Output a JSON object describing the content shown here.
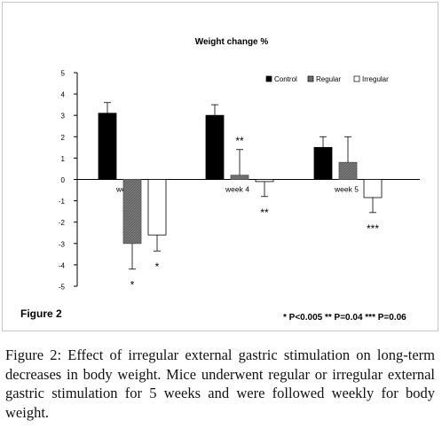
{
  "chart_data": {
    "type": "bar",
    "title": "Weight change %",
    "categories": [
      "week 1",
      "week 4",
      "week 5"
    ],
    "series": [
      {
        "name": "Control",
        "color": "#000000",
        "pattern": "solid",
        "values": [
          3.1,
          3.0,
          1.5
        ],
        "errors": [
          0.5,
          0.5,
          0.5
        ]
      },
      {
        "name": "Regular",
        "color": "#808080",
        "pattern": "hatched",
        "values": [
          -3.0,
          0.2,
          0.8
        ],
        "errors": [
          1.2,
          1.2,
          1.2
        ]
      },
      {
        "name": "Irregular",
        "color": "#ffffff",
        "pattern": "outline",
        "values": [
          -2.6,
          -0.1,
          -0.85
        ],
        "errors": [
          0.75,
          0.7,
          0.7
        ]
      }
    ],
    "ylim": [
      -5,
      5
    ],
    "yticks": [
      "5",
      "4",
      "3",
      "2",
      "1",
      "0",
      "-1",
      "-2",
      "-3",
      "-4",
      "-5"
    ],
    "legend_position": "top-right",
    "annotations": [
      {
        "category": "week 1",
        "series": "Regular",
        "text": "*"
      },
      {
        "category": "week 1",
        "series": "Irregular",
        "text": "*"
      },
      {
        "category": "week 4",
        "series": "Regular",
        "text": "**"
      },
      {
        "category": "week 4",
        "series": "Irregular",
        "text": "**"
      },
      {
        "category": "week 5",
        "series": "Irregular",
        "text": "***"
      }
    ]
  },
  "figure_label": "Figure 2",
  "significance_note": "* P<0.005 ** P=0.04 *** P=0.06",
  "caption": "Figure 2: Effect of irregular external gastric stimulation on long-term decreases in body weight. Mice underwent regular or irregular external gastric stimulation for 5 weeks and were followed weekly for body weight."
}
